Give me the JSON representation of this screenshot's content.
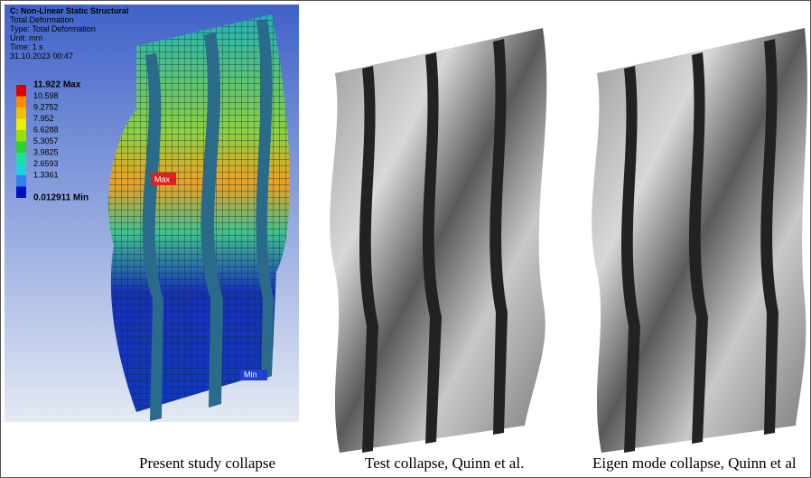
{
  "panels": [
    {
      "header": {
        "title": "C: Non-Linear Static Structural",
        "lines": [
          "Total Deformation",
          "Type: Total Deformation",
          "Unit: mm",
          "Time: 1 s",
          "31.10.2023 00:47"
        ]
      },
      "legend": [
        "11.922 Max",
        "10.598",
        "9.2752",
        "7.952",
        "6.6288",
        "5.3057",
        "3.9825",
        "2.6593",
        "1.3361",
        "0.012911 Min"
      ],
      "probes": [
        "Max",
        "Min"
      ],
      "caption": "Present study collapse"
    },
    {
      "caption": "Test collapse, Quinn et al."
    },
    {
      "caption": "Eigen mode collapse, Quinn et al"
    }
  ]
}
